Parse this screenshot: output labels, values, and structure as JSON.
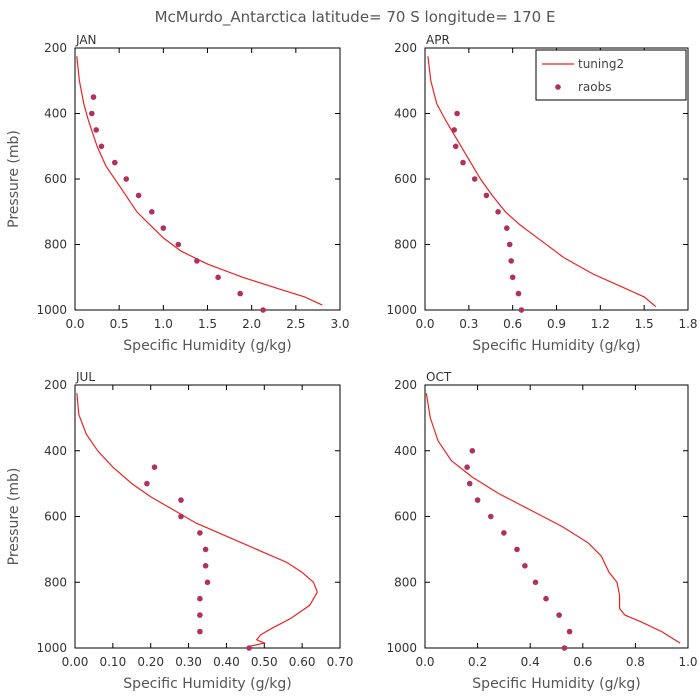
{
  "title": "McMurdo_Antarctica  latitude= 70 S longitude= 170 E",
  "legend": {
    "model_label": "tuning2",
    "obs_label": "raobs"
  },
  "colors": {
    "model": "#ee2222",
    "obs": "#b03060"
  },
  "chart_data": [
    {
      "type": "scatter",
      "panel": "JAN",
      "xlabel": "Specific Humidity (g/kg)",
      "ylabel": "Pressure (mb)",
      "xlim": [
        0,
        3.0
      ],
      "ylim": [
        1000,
        200
      ],
      "xticks": [
        "0.0",
        "0.5",
        "1.0",
        "1.5",
        "2.0",
        "2.5",
        "3.0"
      ],
      "yticks": [
        "200",
        "400",
        "600",
        "800",
        "1000"
      ],
      "series": [
        {
          "name": "tuning2",
          "kind": "line",
          "x": [
            0.02,
            0.05,
            0.1,
            0.15,
            0.25,
            0.35,
            0.5,
            0.6,
            0.7,
            0.85,
            1.0,
            1.2,
            1.5,
            1.9,
            2.3,
            2.6,
            2.8
          ],
          "y": [
            225,
            300,
            370,
            420,
            500,
            560,
            620,
            660,
            700,
            740,
            780,
            820,
            860,
            900,
            935,
            960,
            985
          ]
        },
        {
          "name": "raobs",
          "kind": "points",
          "x": [
            0.21,
            0.19,
            0.24,
            0.3,
            0.45,
            0.58,
            0.72,
            0.87,
            1.0,
            1.17,
            1.38,
            1.62,
            1.87,
            2.13
          ],
          "y": [
            350,
            400,
            450,
            500,
            550,
            600,
            650,
            700,
            750,
            800,
            850,
            900,
            950,
            1000
          ]
        }
      ]
    },
    {
      "type": "scatter",
      "panel": "APR",
      "xlabel": "Specific Humidity (g/kg)",
      "ylabel": "",
      "xlim": [
        0,
        1.8
      ],
      "ylim": [
        1000,
        200
      ],
      "xticks": [
        "0.0",
        "0.3",
        "0.6",
        "0.9",
        "1.2",
        "1.5",
        "1.8"
      ],
      "yticks": [
        "200",
        "400",
        "600",
        "800",
        "1000"
      ],
      "series": [
        {
          "name": "tuning2",
          "kind": "line",
          "x": [
            0.02,
            0.04,
            0.08,
            0.14,
            0.22,
            0.3,
            0.38,
            0.46,
            0.55,
            0.65,
            0.8,
            0.95,
            1.15,
            1.35,
            1.5,
            1.58
          ],
          "y": [
            225,
            300,
            370,
            420,
            480,
            540,
            600,
            650,
            700,
            740,
            790,
            840,
            890,
            930,
            960,
            990
          ]
        },
        {
          "name": "raobs",
          "kind": "points",
          "x": [
            0.22,
            0.2,
            0.21,
            0.26,
            0.34,
            0.42,
            0.5,
            0.56,
            0.58,
            0.59,
            0.6,
            0.64,
            0.66
          ],
          "y": [
            400,
            450,
            500,
            550,
            600,
            650,
            700,
            750,
            800,
            850,
            900,
            950,
            1000
          ]
        }
      ]
    },
    {
      "type": "scatter",
      "panel": "JUL",
      "xlabel": "Specific Humidity (g/kg)",
      "ylabel": "Pressure (mb)",
      "xlim": [
        0,
        0.7
      ],
      "ylim": [
        1000,
        200
      ],
      "xticks": [
        "0.00",
        "0.10",
        "0.20",
        "0.30",
        "0.40",
        "0.50",
        "0.60",
        "0.70"
      ],
      "yticks": [
        "200",
        "400",
        "600",
        "800",
        "1000"
      ],
      "series": [
        {
          "name": "tuning2",
          "kind": "line",
          "x": [
            0.005,
            0.01,
            0.03,
            0.06,
            0.1,
            0.15,
            0.2,
            0.26,
            0.32,
            0.38,
            0.44,
            0.5,
            0.56,
            0.6,
            0.63,
            0.64,
            0.62,
            0.57,
            0.52,
            0.49,
            0.48,
            0.5,
            0.46
          ],
          "y": [
            225,
            290,
            350,
            400,
            450,
            500,
            540,
            580,
            620,
            650,
            680,
            710,
            740,
            770,
            800,
            830,
            870,
            910,
            940,
            960,
            975,
            985,
            995
          ]
        },
        {
          "name": "raobs",
          "kind": "points",
          "x": [
            0.21,
            0.19,
            0.28,
            0.28,
            0.33,
            0.345,
            0.345,
            0.35,
            0.33,
            0.33,
            0.33,
            0.46
          ],
          "y": [
            450,
            500,
            550,
            600,
            650,
            700,
            750,
            800,
            850,
            900,
            950,
            1000
          ]
        }
      ]
    },
    {
      "type": "scatter",
      "panel": "OCT",
      "xlabel": "Specific Humidity (g/kg)",
      "ylabel": "",
      "xlim": [
        0,
        1.0
      ],
      "ylim": [
        1000,
        200
      ],
      "xticks": [
        "0.0",
        "0.2",
        "0.4",
        "0.6",
        "0.8",
        "1.0"
      ],
      "yticks": [
        "200",
        "400",
        "600",
        "800",
        "1000"
      ],
      "series": [
        {
          "name": "tuning2",
          "kind": "line",
          "x": [
            0.005,
            0.02,
            0.05,
            0.1,
            0.18,
            0.28,
            0.4,
            0.52,
            0.62,
            0.67,
            0.7,
            0.73,
            0.74,
            0.74,
            0.76,
            0.82,
            0.9,
            0.97
          ],
          "y": [
            225,
            300,
            370,
            430,
            480,
            530,
            580,
            630,
            680,
            720,
            770,
            800,
            840,
            880,
            900,
            920,
            950,
            985
          ]
        },
        {
          "name": "raobs",
          "kind": "points",
          "x": [
            0.18,
            0.16,
            0.17,
            0.2,
            0.25,
            0.3,
            0.35,
            0.38,
            0.42,
            0.46,
            0.51,
            0.55,
            0.53
          ],
          "y": [
            400,
            450,
            500,
            550,
            600,
            650,
            700,
            750,
            800,
            850,
            900,
            950,
            1000
          ]
        }
      ]
    }
  ]
}
